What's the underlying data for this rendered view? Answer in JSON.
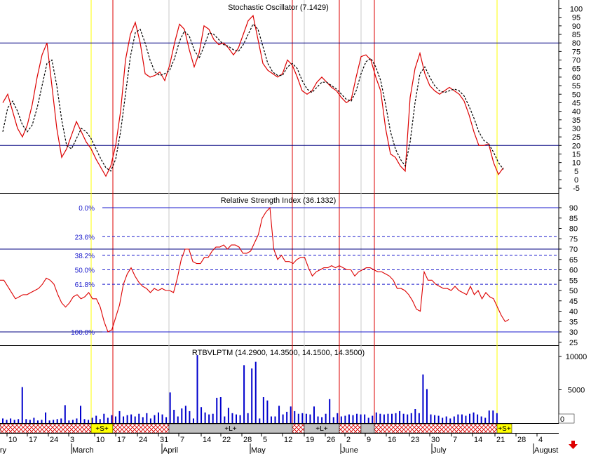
{
  "chart_data": [
    {
      "type": "line",
      "title": "Stochastic Oscillator (7.1429)",
      "ylim": [
        -5,
        100
      ],
      "yticks": [
        100,
        95,
        90,
        85,
        80,
        75,
        70,
        65,
        60,
        55,
        50,
        45,
        40,
        35,
        30,
        25,
        20,
        15,
        10,
        5,
        0,
        -5
      ],
      "hlines": [
        80,
        20
      ],
      "series": [
        {
          "values": [
            45,
            50,
            40,
            30,
            25,
            32,
            44,
            60,
            73,
            80,
            55,
            30,
            13,
            18,
            26,
            34,
            28,
            22,
            18,
            12,
            7,
            2,
            8,
            20,
            40,
            70,
            85,
            92,
            80,
            62,
            60,
            61,
            63,
            58,
            67,
            80,
            91,
            88,
            76,
            66,
            74,
            90,
            88,
            82,
            79,
            80,
            77,
            73,
            77,
            85,
            93,
            96,
            82,
            68,
            64,
            62,
            60,
            62,
            70,
            67,
            60,
            52,
            50,
            52,
            57,
            60,
            57,
            54,
            52,
            48,
            45,
            47,
            60,
            72,
            73,
            70,
            60,
            52,
            30,
            15,
            13,
            8,
            5,
            48,
            65,
            74,
            62,
            55,
            52,
            50,
            52,
            54,
            52,
            50,
            46,
            38,
            28,
            20,
            20,
            21,
            10,
            3,
            7
          ],
          "color": "#dd0000"
        },
        {
          "values": [
            28,
            42,
            46,
            40,
            32,
            28,
            32,
            42,
            55,
            68,
            70,
            55,
            35,
            20,
            18,
            24,
            30,
            28,
            24,
            18,
            12,
            7,
            5,
            12,
            28,
            50,
            72,
            86,
            88,
            80,
            70,
            63,
            61,
            62,
            64,
            71,
            81,
            87,
            84,
            76,
            71,
            78,
            86,
            85,
            82,
            79,
            78,
            76,
            75,
            79,
            85,
            91,
            88,
            78,
            68,
            63,
            61,
            61,
            66,
            68,
            65,
            58,
            53,
            51,
            54,
            57,
            57,
            55,
            53,
            50,
            47,
            46,
            52,
            62,
            69,
            71,
            66,
            58,
            44,
            28,
            18,
            12,
            8,
            22,
            45,
            62,
            66,
            60,
            55,
            52,
            51,
            52,
            53,
            52,
            49,
            43,
            36,
            28,
            23,
            21,
            16,
            10,
            6
          ],
          "dashed": true,
          "color": "#000000"
        }
      ]
    },
    {
      "type": "line",
      "title": "Relative Strength Index (36.1332)",
      "ylim": [
        22,
        95
      ],
      "yticks": [
        90,
        85,
        80,
        75,
        70,
        65,
        60,
        55,
        50,
        45,
        40,
        35,
        30,
        25
      ],
      "hlines_solid": [
        70,
        30
      ],
      "fib_levels": [
        {
          "label": "0.0%",
          "value": 90
        },
        {
          "label": "23.6%",
          "value": 76
        },
        {
          "label": "38.2%",
          "value": 67
        },
        {
          "label": "50.0%",
          "value": 60
        },
        {
          "label": "61.8%",
          "value": 53
        },
        {
          "label": "100.0%",
          "value": 30
        }
      ],
      "series": [
        {
          "values": [
            55,
            55,
            52,
            49,
            46,
            47,
            48,
            48,
            49,
            50,
            51,
            53,
            56,
            55,
            53,
            48,
            44,
            42,
            44,
            47,
            48,
            46,
            47,
            49,
            46,
            46,
            42,
            35,
            30,
            31,
            37,
            43,
            53,
            58,
            61,
            57,
            54,
            52,
            51,
            49,
            51,
            50,
            51,
            50,
            50,
            49,
            56,
            65,
            70,
            70,
            64,
            63,
            63,
            66,
            66,
            69,
            71,
            71,
            72,
            70,
            72,
            72,
            71,
            68,
            68,
            69,
            73,
            77,
            85,
            88,
            90,
            70,
            65,
            67,
            64,
            64,
            63,
            65,
            66,
            66,
            61,
            57,
            59,
            60,
            61,
            61,
            62,
            61,
            62,
            61,
            60,
            60,
            57,
            59,
            60,
            61,
            61,
            60,
            59,
            59,
            58,
            57,
            55,
            51,
            51,
            50,
            48,
            45,
            41,
            40,
            59,
            55,
            55,
            53,
            52,
            51,
            51,
            50,
            52,
            50,
            49,
            48,
            52,
            48,
            50,
            46,
            49,
            47,
            46,
            42,
            38,
            35,
            36
          ],
          "color": "#dd0000"
        }
      ]
    },
    {
      "type": "bar",
      "title": "RTBVLPTM (14.2900, 14.3500, 14.1500, 14.3500)",
      "ylim": [
        0,
        11000
      ],
      "yticks": [
        10000,
        5000
      ],
      "values": [
        700,
        500,
        700,
        500,
        600,
        5400,
        600,
        500,
        800,
        400,
        500,
        1600,
        400,
        500,
        600,
        700,
        2700,
        400,
        500,
        700,
        2600,
        600,
        500,
        800,
        1100,
        600,
        1400,
        800,
        1200,
        1000,
        1800,
        1000,
        1200,
        1300,
        1000,
        1400,
        900,
        1500,
        700,
        1200,
        1600,
        1300,
        900,
        4600,
        2000,
        1000,
        2200,
        2600,
        1800,
        700,
        10200,
        2400,
        1600,
        1300,
        1400,
        3800,
        3900,
        1000,
        2300,
        1500,
        1300,
        1200,
        8700,
        1500,
        8200,
        9200,
        700,
        3900,
        3400,
        1000,
        1000,
        2600,
        1300,
        1700,
        2500,
        1800,
        1400,
        1500,
        1400,
        1300,
        2500,
        1000,
        900,
        1400,
        3600,
        900,
        1500,
        1000,
        1100,
        1300,
        1200,
        1400,
        1300,
        1300,
        800,
        1100,
        1600,
        1400,
        1300,
        1400,
        1400,
        1500,
        1800,
        1400,
        1300,
        1500,
        2100,
        1500,
        7300,
        5100,
        1300,
        1200,
        1100,
        800,
        1000,
        700,
        1000,
        1300,
        1300,
        1100,
        1400,
        1600,
        1300,
        1000,
        800,
        1900,
        1900,
        1500
      ],
      "color": "#0000cc"
    }
  ],
  "status_bar": [
    {
      "label": "+S+",
      "color": "#ffff00"
    },
    {
      "label": "+L+",
      "color": "#c0c0c0"
    },
    {
      "label": "+L+",
      "color": "#c0c0c0"
    },
    {
      "label": "+S+",
      "color": "#ffff00"
    }
  ],
  "x_axis": {
    "day_labels": [
      "10",
      "17",
      "24",
      "3",
      "10",
      "17",
      "24",
      "31",
      "7",
      "14",
      "22",
      "28",
      "5",
      "12",
      "19",
      "26",
      "2",
      "9",
      "16",
      "23",
      "30",
      "7",
      "14",
      "21",
      "28",
      "4"
    ],
    "month_labels": [
      "ruary",
      "March",
      "April",
      "May",
      "June",
      "July",
      "August"
    ]
  },
  "last_volume_label": "0",
  "arrow_icon": "down-arrow-icon",
  "colors": {
    "price": "#dd0000",
    "signal": "#000000",
    "level": "#000080",
    "fib": "#1a1acc",
    "volume": "#0000cc",
    "event_red": "#dd0000",
    "event_yellow": "#ffff00"
  }
}
